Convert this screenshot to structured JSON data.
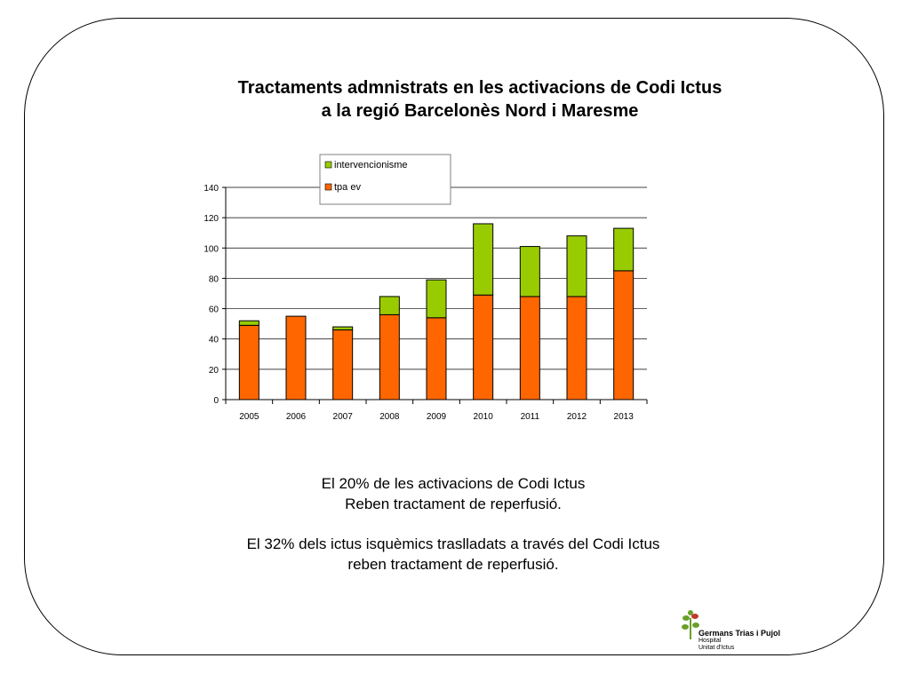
{
  "slide": {
    "title_line1": "Tractaments admnistrats en les activacions de Codi Ictus",
    "title_line2": "a la regió Barcelonès Nord i Maresme",
    "note1_line1": "El 20% de les activacions de Codi Ictus",
    "note1_line2": "Reben tractament de reperfusió.",
    "note2_line1": "El 32% dels ictus isquèmics traslladats a través del Codi Ictus",
    "note2_line2": "reben tractament de reperfusió."
  },
  "logo": {
    "name": "Germans Trias i Pujol",
    "line2": "Hospital",
    "line3": "Unitat d'Ictus"
  },
  "chart_data": {
    "type": "bar",
    "stacked": true,
    "categories": [
      "2005",
      "2006",
      "2007",
      "2008",
      "2009",
      "2010",
      "2011",
      "2012",
      "2013"
    ],
    "series": [
      {
        "name": "tpa ev",
        "color": "#ff6600",
        "values": [
          49,
          55,
          46,
          56,
          54,
          69,
          68,
          68,
          85
        ]
      },
      {
        "name": "intervencionisme",
        "color": "#99cc00",
        "values": [
          3,
          0,
          2,
          12,
          25,
          47,
          33,
          40,
          28
        ]
      }
    ],
    "ylim": [
      0,
      140
    ],
    "yticks": [
      0,
      20,
      40,
      60,
      80,
      100,
      120,
      140
    ],
    "grid": true,
    "legend": "top-center"
  },
  "colors": {
    "frame": "#000000",
    "gridline": "#000000"
  }
}
